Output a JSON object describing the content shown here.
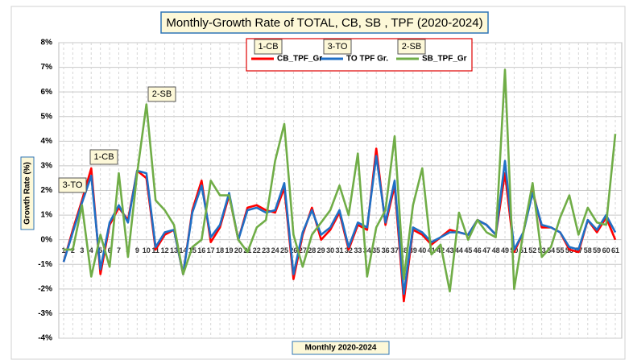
{
  "chart_data": {
    "type": "line",
    "title": "Monthly-Growth Rate of TOTAL, CB, SB , TPF (2020-2024)",
    "y_label": "Growth Rate (%)",
    "x_label": "Monthly 2020-2024",
    "annotations": [
      "1-CB",
      "3-TO",
      "2-SB",
      "2-SB",
      "1-CB",
      "3-TO"
    ],
    "categories": [
      "1",
      "2",
      "3",
      "4",
      "5",
      "6",
      "7",
      "8",
      "9",
      "10",
      "11",
      "12",
      "13",
      "14",
      "15",
      "16",
      "17",
      "18",
      "19",
      "20",
      "21",
      "22",
      "23",
      "24",
      "25",
      "26",
      "27",
      "28",
      "29",
      "30",
      "31",
      "32",
      "33",
      "34",
      "35",
      "36",
      "37",
      "38",
      "39",
      "40",
      "41",
      "42",
      "43",
      "44",
      "45",
      "46",
      "47",
      "48",
      "49",
      "50",
      "51",
      "52",
      "53",
      "54",
      "55",
      "56",
      "57",
      "58",
      "59",
      "60",
      "61"
    ],
    "series": [
      {
        "name": "CB_TPF_Gr",
        "color": "#ff0000",
        "values": [
          -0.9,
          0.4,
          1.6,
          2.9,
          -1.4,
          0.6,
          1.3,
          0.8,
          2.8,
          2.5,
          -0.4,
          0.2,
          0.4,
          -1.4,
          1.2,
          2.4,
          -0.1,
          0.5,
          1.8,
          0.0,
          1.3,
          1.4,
          1.2,
          1.1,
          2.1,
          -1.6,
          0.2,
          1.3,
          0.0,
          0.4,
          1.1,
          -0.4,
          0.6,
          0.4,
          3.7,
          0.6,
          2.2,
          -2.5,
          0.4,
          0.2,
          -0.2,
          0.1,
          0.4,
          0.3,
          0.2,
          0.8,
          0.6,
          0.2,
          2.7,
          -0.5,
          0.3,
          2.0,
          0.5,
          0.5,
          0.3,
          -0.4,
          -0.5,
          0.8,
          0.3,
          0.9,
          0.0
        ]
      },
      {
        "name": "TO TPF Gr.",
        "color": "#1f6fc5",
        "values": [
          -0.9,
          0.3,
          1.5,
          2.6,
          -1.2,
          0.7,
          1.4,
          0.7,
          2.8,
          2.7,
          -0.3,
          0.3,
          0.4,
          -1.4,
          1.1,
          2.2,
          0.1,
          0.6,
          1.9,
          0.0,
          1.2,
          1.3,
          1.1,
          1.2,
          2.3,
          -1.4,
          0.3,
          1.2,
          0.2,
          0.5,
          1.2,
          -0.3,
          0.7,
          0.5,
          3.4,
          0.7,
          2.4,
          -2.2,
          0.5,
          0.3,
          -0.1,
          0.1,
          0.3,
          0.3,
          0.2,
          0.8,
          0.6,
          0.2,
          3.2,
          -0.4,
          0.3,
          1.9,
          0.6,
          0.5,
          0.3,
          -0.3,
          -0.4,
          0.8,
          0.4,
          1.0,
          0.3
        ]
      },
      {
        "name": "SB_TPF_Gr",
        "color": "#70ad47",
        "values": [
          -0.4,
          -0.4,
          1.4,
          -1.5,
          0.2,
          -1.1,
          2.7,
          -0.7,
          2.7,
          5.5,
          1.6,
          1.2,
          0.6,
          -1.4,
          -0.3,
          0.0,
          2.4,
          1.8,
          1.8,
          0.0,
          -0.5,
          0.5,
          0.8,
          3.2,
          4.7,
          0.2,
          -1.1,
          0.2,
          0.7,
          1.2,
          2.2,
          1.0,
          3.5,
          -1.5,
          0.5,
          1.2,
          4.2,
          -1.6,
          1.4,
          2.9,
          -0.6,
          -0.2,
          -2.1,
          1.1,
          0.0,
          0.8,
          0.3,
          0.1,
          6.9,
          -2.0,
          0.3,
          2.3,
          -0.7,
          -0.3,
          0.9,
          1.8,
          0.2,
          1.3,
          0.7,
          0.6,
          4.3
        ]
      }
    ],
    "ylim": [
      -4,
      8
    ],
    "yticks": [
      {
        "value": -4,
        "label": "-4%"
      },
      {
        "value": -3,
        "label": "-3%"
      },
      {
        "value": -2,
        "label": "-2%"
      },
      {
        "value": -1,
        "label": "-1%"
      },
      {
        "value": 0,
        "label": "0%"
      },
      {
        "value": 1,
        "label": "1%"
      },
      {
        "value": 2,
        "label": "2%"
      },
      {
        "value": 3,
        "label": "3%"
      },
      {
        "value": 4,
        "label": "4%"
      },
      {
        "value": 5,
        "label": "5%"
      },
      {
        "value": 6,
        "label": "6%"
      },
      {
        "value": 7,
        "label": "7%"
      },
      {
        "value": 8,
        "label": "8%"
      }
    ],
    "grid": true
  }
}
